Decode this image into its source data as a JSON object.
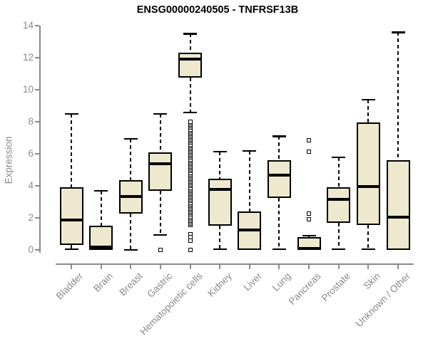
{
  "chart_data": {
    "type": "boxplot",
    "title": "ENSG00000240505 - TNFRSF13B",
    "ylabel": "Expression",
    "ylim": [
      0,
      14
    ],
    "yticks": [
      0,
      2,
      4,
      6,
      8,
      10,
      12,
      14
    ],
    "grid": false,
    "legend_position": "none",
    "categories": [
      "Bladder",
      "Brain",
      "Breast",
      "Gastric",
      "Hematopoietic cells",
      "Kidney",
      "Liver",
      "Lung",
      "Pancreas",
      "Prostate",
      "Skin",
      "Unknown / Other"
    ],
    "boxes": [
      {
        "category": "Bladder",
        "whisker_low": 0.05,
        "q1": 0.3,
        "median": 1.85,
        "q3": 3.9,
        "whisker_high": 8.5,
        "outliers": []
      },
      {
        "category": "Brain",
        "whisker_low": 0.02,
        "q1": 0.02,
        "median": 0.2,
        "q3": 1.5,
        "whisker_high": 3.7,
        "outliers": []
      },
      {
        "category": "Breast",
        "whisker_low": 0.02,
        "q1": 2.25,
        "median": 3.35,
        "q3": 4.35,
        "whisker_high": 6.95,
        "outliers": []
      },
      {
        "category": "Gastric",
        "whisker_low": 0.95,
        "q1": 3.7,
        "median": 5.4,
        "q3": 6.1,
        "whisker_high": 8.5,
        "outliers": [
          0.02
        ]
      },
      {
        "category": "Hematopoietic cells",
        "whisker_low": 8.6,
        "q1": 10.75,
        "median": 11.9,
        "q3": 12.3,
        "whisker_high": 13.5,
        "outliers": [
          1.0,
          0.8,
          0.6,
          0.02
        ],
        "outlier_stack": {
          "from": 1.55,
          "to": 8.0,
          "count": 70
        }
      },
      {
        "category": "Kidney",
        "whisker_low": 0.05,
        "q1": 1.5,
        "median": 3.8,
        "q3": 4.45,
        "whisker_high": 6.15,
        "outliers": []
      },
      {
        "category": "Liver",
        "whisker_low": 0.02,
        "q1": 0.02,
        "median": 1.25,
        "q3": 2.4,
        "whisker_high": 6.2,
        "outliers": []
      },
      {
        "category": "Lung",
        "whisker_low": 0.05,
        "q1": 3.25,
        "median": 4.65,
        "q3": 5.6,
        "whisker_high": 7.1,
        "outliers": []
      },
      {
        "category": "Pancreas",
        "whisker_low": 0.02,
        "q1": 0.02,
        "median": 0.1,
        "q3": 0.8,
        "whisker_high": 0.9,
        "outliers": [
          6.85,
          6.15,
          2.25,
          1.9
        ]
      },
      {
        "category": "Prostate",
        "whisker_low": 0.05,
        "q1": 1.7,
        "median": 3.15,
        "q3": 3.9,
        "whisker_high": 5.8,
        "outliers": []
      },
      {
        "category": "Skin",
        "whisker_low": 0.05,
        "q1": 1.55,
        "median": 3.95,
        "q3": 7.95,
        "whisker_high": 9.4,
        "outliers": []
      },
      {
        "category": "Unknown / Other",
        "whisker_low": 0.02,
        "q1": 0.02,
        "median": 2.05,
        "q3": 5.6,
        "whisker_high": 13.6,
        "outliers": []
      }
    ],
    "colors": {
      "box_fill": "#EDE8CE",
      "box_border": "#000000",
      "median": "#000000",
      "whisker": "#000000",
      "outlier": "#000000",
      "axis": "#8A8A8A",
      "tick_label": "#8A8A8A",
      "title": "#000000"
    }
  }
}
